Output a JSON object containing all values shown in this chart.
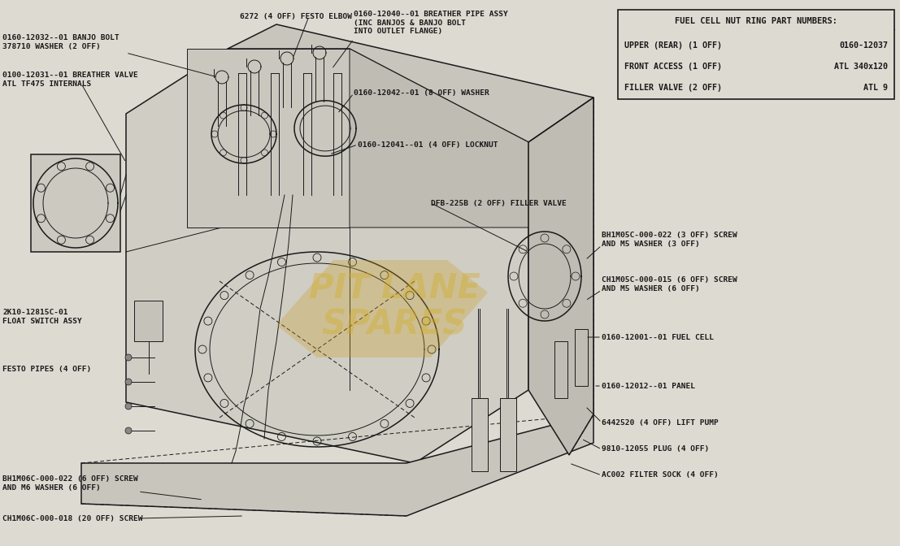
{
  "bg_color": "#e8e5de",
  "drawing_color": "#1a1a1a",
  "table_title": "FUEL CELL NUT RING PART NUMBERS:",
  "table_entries": [
    [
      "UPPER (REAR) (1 OFF)",
      "0160-12037"
    ],
    [
      "FRONT ACCESS (1 OFF)",
      "ATL 340x120"
    ],
    [
      "FILLER VALVE (2 OFF)",
      "ATL 9"
    ]
  ],
  "watermark_text1": "PIT LANE",
  "watermark_text2": "SPARES",
  "watermark_color": "#c8a020",
  "watermark_alpha": 0.38,
  "label_fs": 6.8,
  "label_color": "#1a1818"
}
